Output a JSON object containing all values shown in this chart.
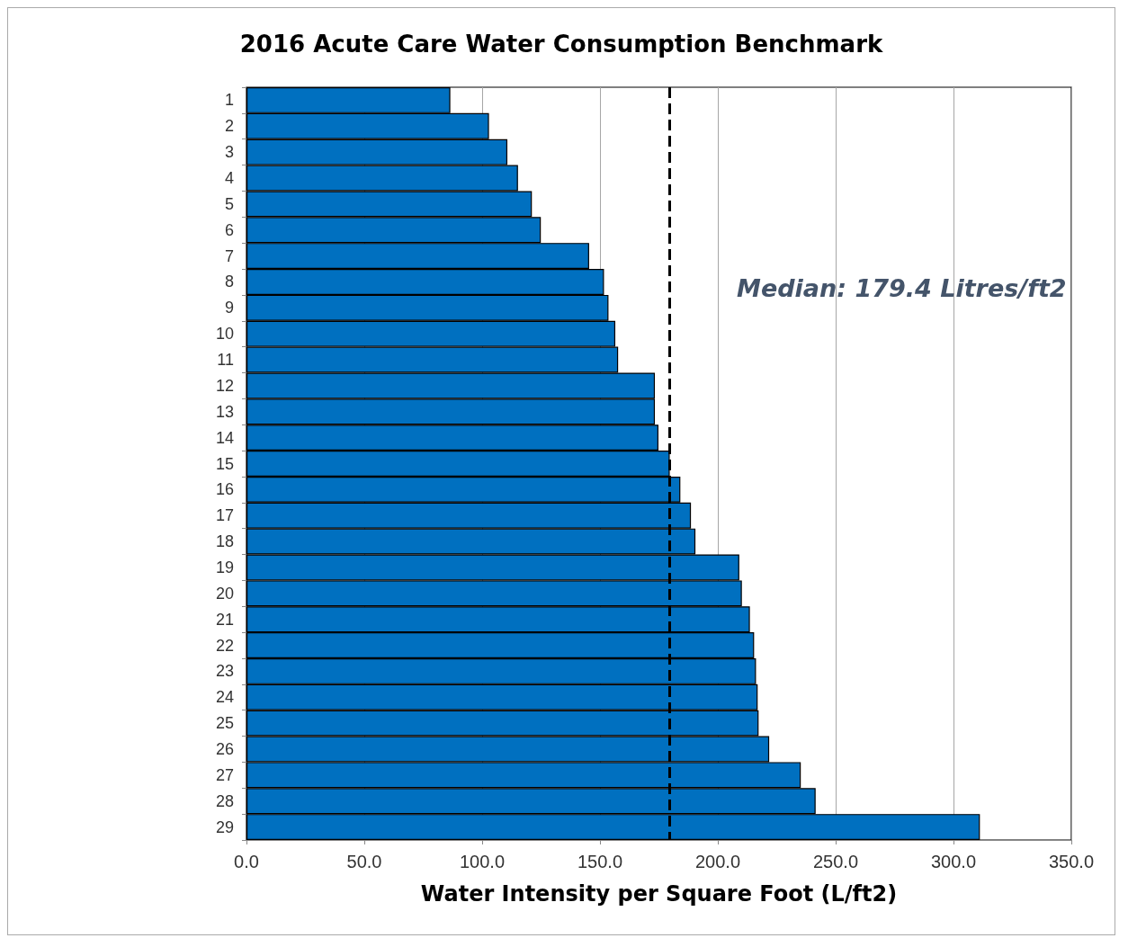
{
  "chart_data": {
    "type": "bar",
    "orientation": "horizontal",
    "title": "2016 Acute Care Water Consumption Benchmark",
    "xlabel": "Water Intensity per Square Foot (L/ft2)",
    "categories": [
      "1",
      "2",
      "3",
      "4",
      "5",
      "6",
      "7",
      "8",
      "9",
      "10",
      "11",
      "12",
      "13",
      "14",
      "15",
      "16",
      "17",
      "18",
      "19",
      "20",
      "21",
      "22",
      "23",
      "24",
      "25",
      "26",
      "27",
      "28",
      "29"
    ],
    "values": [
      86.5,
      102.9,
      110.7,
      115.2,
      121.1,
      124.9,
      145.4,
      151.7,
      153.6,
      156.5,
      157.7,
      173.3,
      173.3,
      174.8,
      179.6,
      184.1,
      188.6,
      190.5,
      209.1,
      210.2,
      213.6,
      215.4,
      216.2,
      216.9,
      217.3,
      221.8,
      235.2,
      241.5,
      311.2
    ],
    "color": "#0070c0",
    "xlim": [
      0,
      350
    ],
    "xticks": [
      {
        "value": 0,
        "label": "0.0"
      },
      {
        "value": 50,
        "label": "50.0"
      },
      {
        "value": 100,
        "label": "100.0"
      },
      {
        "value": 150,
        "label": "150.0"
      },
      {
        "value": 200,
        "label": "200.0"
      },
      {
        "value": 250,
        "label": "250.0"
      },
      {
        "value": 300,
        "label": "300.0"
      },
      {
        "value": 350,
        "label": "350.0"
      }
    ],
    "grid": "x",
    "ref_lines": [
      {
        "axis": "x",
        "value": 179.4,
        "label": "Median: 179.4 Litres/ft2",
        "color": "#000000",
        "line_style": "dashed"
      }
    ]
  }
}
